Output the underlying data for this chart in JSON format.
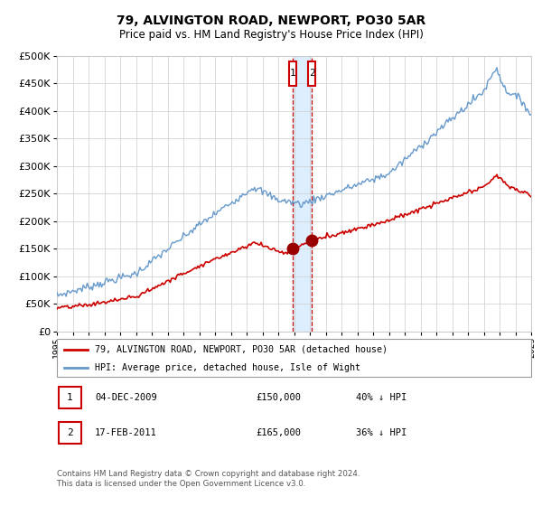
{
  "title1": "79, ALVINGTON ROAD, NEWPORT, PO30 5AR",
  "title2": "Price paid vs. HM Land Registry's House Price Index (HPI)",
  "legend_line1": "79, ALVINGTON ROAD, NEWPORT, PO30 5AR (detached house)",
  "legend_line2": "HPI: Average price, detached house, Isle of Wight",
  "table_row1": [
    "1",
    "04-DEC-2009",
    "£150,000",
    "40% ↓ HPI"
  ],
  "table_row2": [
    "2",
    "17-FEB-2011",
    "£165,000",
    "36% ↓ HPI"
  ],
  "footnote1": "Contains HM Land Registry data © Crown copyright and database right 2024.",
  "footnote2": "This data is licensed under the Open Government Licence v3.0.",
  "red_color": "#cc0000",
  "blue_color": "#6699cc",
  "marker_color": "#990000",
  "vline_color": "#cc0000",
  "vband_color": "#ddeeff",
  "grid_color": "#cccccc",
  "bg_color": "#f8f8f8",
  "ylim": [
    0,
    500000
  ],
  "yticks": [
    0,
    50000,
    100000,
    150000,
    200000,
    250000,
    300000,
    350000,
    400000,
    450000,
    500000
  ],
  "sale1_year": 2009.92,
  "sale2_year": 2011.12,
  "sale1_price": 150000,
  "sale2_price": 165000,
  "xmin": 1995,
  "xmax": 2025
}
